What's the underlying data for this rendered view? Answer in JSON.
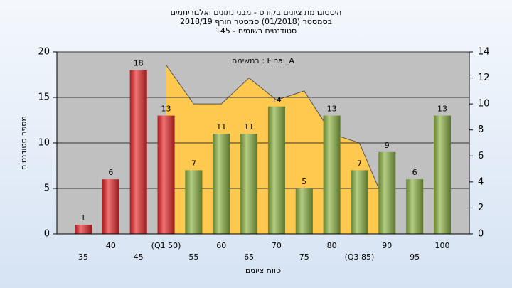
{
  "chart_data": {
    "type": "bar",
    "title": [
      "היסטוגרמת ציונים בקורס - מבני נתונים ואלגוריתמים",
      "בסמסטר (01/2018)  סמסטר חורף 2018/19",
      "סטודנטים רשומים - 145"
    ],
    "annotation": "במשימה : Final_A",
    "xlabel": "טווח ציונים",
    "ylabel": "מספר סטודנטים",
    "categories": [
      "35",
      "40",
      "45",
      "(Q1 50)",
      "55",
      "60",
      "65",
      "70",
      "75",
      "80",
      "(Q3 85)",
      "90",
      "95",
      "100"
    ],
    "values": [
      1,
      6,
      18,
      13,
      7,
      11,
      11,
      14,
      5,
      13,
      7,
      9,
      6,
      13
    ],
    "colors": [
      "#e8282a",
      "#e8282a",
      "#e8282a",
      "#e8282a",
      "#8db443",
      "#8db443",
      "#8db443",
      "#8db443",
      "#8db443",
      "#8db443",
      "#8db443",
      "#8db443",
      "#8db443",
      "#8db443"
    ],
    "area": {
      "color": "#ffc84e",
      "axis": "y2",
      "values": [
        null,
        null,
        null,
        13,
        10,
        10,
        12,
        10.3,
        11,
        7.7,
        7,
        2,
        null,
        null
      ]
    },
    "ylim": [
      0,
      20
    ],
    "yticks": [
      0,
      5,
      10,
      15,
      20
    ],
    "y2lim": [
      0,
      14
    ],
    "y2ticks": [
      0,
      2,
      4,
      6,
      8,
      10,
      12,
      14
    ],
    "grid": true
  }
}
